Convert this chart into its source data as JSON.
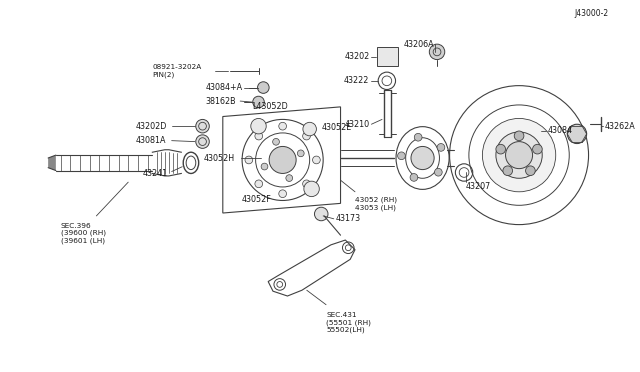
{
  "bg_color": "#ffffff",
  "line_color": "#404040",
  "text_color": "#1a1a1a",
  "diagram_id": "J43000-2",
  "figsize": [
    6.4,
    3.72
  ],
  "dpi": 100,
  "labels": {
    "sec396": "SEC.396\n(39600 (RH)\n(39601 (LH)",
    "sec431": "SEC.431\n(55501 (RH)\n55502(LH)",
    "p43173": "43173",
    "p43052rh": "43052 (RH)\n43053 (LH)",
    "p43052f": "43052F",
    "p43052h": "43052H",
    "p43052e": "43052E",
    "p43052d": "L43052D",
    "p43241": "43241",
    "p43081a": "43081A",
    "p43202d": "43202D",
    "p38162b": "38162B",
    "p43084pa": "43084+A",
    "p08921": "08921-3202A\nPIN(2)",
    "p43210": "43210",
    "p43222": "43222",
    "p43202": "43202",
    "p43206a": "43206A",
    "p43207": "43207",
    "p43084": "43084",
    "p43262a": "43262A"
  }
}
